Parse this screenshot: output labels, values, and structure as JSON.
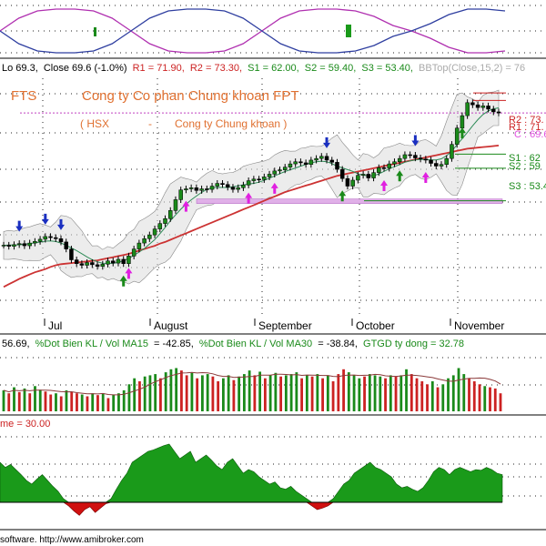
{
  "top_bar": {
    "low": "Lo 69.3,",
    "close": "Close 69.6 (-1.0%)",
    "r1": "R1 = 71.90,",
    "r2": "R2 = 73.30,",
    "s1": "S1 = 62.00,",
    "s2": "S2 = 59.40,",
    "s3": "S3 = 53.40,",
    "bbtop": "BBTop(Close,15,2) = 76"
  },
  "header": {
    "ticker": "FTS",
    "company": "Cong ty Co phan Chung khoan FPT",
    "exchange": "( HSX",
    "dash": "-",
    "sector": "Cong ty Chung khoan )"
  },
  "level_labels": {
    "r2": "R2 : 73.",
    "r1": "R1 : 71.",
    "close": "C : 69.6",
    "s1": "S1 : 62",
    "s2": "S2 : 59",
    "s3": "S3 : 53.4"
  },
  "volume_header": {
    "a": "56.69,",
    "b": "%Dot Bien KL / Vol MA15",
    "c": "= -42.85,",
    "d": "%Dot Bien KL / Vol MA30",
    "e": "= -38.84,",
    "f": "GTGD ty dong = 32.78"
  },
  "osc_header": "me = 30.00",
  "footer": "software.  http://www.amibroker.com",
  "colors": {
    "up": "#1a8a1a",
    "down": "#cc2222",
    "ma_long": "#cc3333",
    "ma_short": "#2e8b57",
    "band_fill": "#dcdcdc",
    "cyclic_a": "#b030b0",
    "cyclic_b": "#2f3fa0",
    "osc_pos": "#1a9a1a",
    "osc_neg": "#d01010",
    "support_zone": "#e0b0e8"
  },
  "chart_data": [
    {
      "type": "line",
      "title": "",
      "description_none": "",
      "ylim": [
        -1,
        1
      ],
      "series": [
        {
          "values": [
            0.0,
            0.35,
            0.55,
            0.6,
            0.6,
            0.55,
            0.35,
            0.0,
            -0.35,
            -0.55,
            -0.6,
            -0.6,
            -0.55,
            -0.35,
            0.0,
            0.35,
            0.55,
            0.6,
            0.6,
            0.55,
            0.4,
            0.15,
            0.0,
            -0.2,
            -0.45,
            -0.6,
            -0.6,
            -0.55
          ]
        },
        {
          "values": [
            0.0,
            -0.35,
            -0.55,
            -0.6,
            -0.6,
            -0.55,
            -0.35,
            0.0,
            0.35,
            0.55,
            0.6,
            0.6,
            0.55,
            0.35,
            0.0,
            -0.35,
            -0.55,
            -0.6,
            -0.6,
            -0.55,
            -0.4,
            -0.15,
            0.0,
            0.2,
            0.45,
            0.6,
            0.6,
            0.55
          ]
        }
      ]
    },
    {
      "type": "line",
      "x_labels": [
        "Jul",
        "August",
        "September",
        "October",
        "November"
      ],
      "ylim": [
        30,
        76
      ],
      "closes": [
        45.2,
        45.0,
        45.3,
        45.5,
        45.1,
        45.6,
        45.9,
        46.3,
        46.8,
        46.6,
        46.4,
        45.8,
        44.5,
        42.5,
        41.8,
        41.5,
        42.0,
        41.6,
        41.3,
        41.7,
        42.3,
        41.9,
        42.6,
        41.8,
        43.2,
        44.5,
        45.6,
        46.4,
        47.1,
        48.2,
        49.2,
        50.1,
        51.6,
        53.6,
        55.4,
        55.6,
        55.8,
        55.3,
        55.6,
        55.5,
        56.1,
        56.6,
        56.4,
        55.9,
        55.5,
        55.8,
        56.3,
        57.1,
        57.4,
        57.3,
        57.8,
        58.3,
        58.9,
        59.1,
        59.6,
        60.2,
        60.6,
        60.4,
        60.1,
        60.9,
        61.2,
        61.6,
        60.9,
        60.5,
        59.2,
        57.5,
        56.1,
        57.2,
        58.1,
        58.3,
        57.6,
        58.6,
        59.5,
        59.4,
        60.2,
        60.6,
        61.2,
        61.9,
        61.8,
        61.3,
        61.1,
        60.9,
        60.3,
        59.8,
        60.1,
        61.2,
        63.8,
        66.8,
        69.1,
        71.5,
        71.1,
        70.6,
        70.9,
        70.3,
        69.8,
        69.6
      ],
      "ma_long": [
        37.5,
        38.0,
        38.5,
        39.0,
        39.4,
        39.8,
        40.2,
        40.5,
        40.8,
        41.2,
        41.5,
        41.7,
        41.8,
        41.9,
        42.0,
        42.1,
        42.2,
        42.3,
        42.4,
        42.6,
        42.8,
        43.0,
        43.2,
        43.4,
        43.6,
        43.9,
        44.2,
        44.5,
        44.8,
        45.1,
        45.5,
        45.8,
        46.2,
        46.6,
        47.0,
        47.4,
        47.8,
        48.2,
        48.6,
        49.0,
        49.4,
        49.8,
        50.2,
        50.6,
        51.0,
        51.4,
        51.8,
        52.2,
        52.6,
        53.0,
        53.4,
        53.8,
        54.2,
        54.6,
        55.0,
        55.3,
        55.6,
        55.9,
        56.2,
        56.5,
        56.8,
        57.1,
        57.4,
        57.7,
        58.0,
        58.2,
        58.4,
        58.6,
        58.8,
        59.0,
        59.2,
        59.4,
        59.6,
        59.8,
        60.0,
        60.2,
        60.4,
        60.6,
        60.8,
        61.0,
        61.2,
        61.4,
        61.6,
        61.8,
        62.0,
        62.2,
        62.4,
        62.6,
        62.8,
        63.0,
        63.1,
        63.2,
        63.3,
        63.4,
        63.5,
        63.6
      ],
      "annotations": {
        "R1": 71.9,
        "R2": 73.3,
        "S1": 62.0,
        "S2": 59.4,
        "S3": 53.4,
        "Close": 69.6
      },
      "buy_arrows_green": [
        23,
        65,
        76,
        88
      ],
      "buy_arrows_magenta": [
        24,
        35,
        47,
        52,
        73,
        81
      ],
      "sell_arrows": [
        3,
        8,
        11,
        62,
        79
      ]
    },
    {
      "type": "bar",
      "ylim": [
        0,
        1
      ],
      "values": [
        0.35,
        0.3,
        0.4,
        0.32,
        0.38,
        0.3,
        0.42,
        0.36,
        0.33,
        0.28,
        0.3,
        0.25,
        0.35,
        0.32,
        0.3,
        0.28,
        0.25,
        0.3,
        0.27,
        0.3,
        0.22,
        0.28,
        0.3,
        0.35,
        0.45,
        0.55,
        0.5,
        0.58,
        0.6,
        0.62,
        0.55,
        0.65,
        0.7,
        0.72,
        0.68,
        0.6,
        0.65,
        0.55,
        0.6,
        0.62,
        0.58,
        0.5,
        0.55,
        0.6,
        0.52,
        0.58,
        0.62,
        0.68,
        0.6,
        0.66,
        0.55,
        0.6,
        0.64,
        0.58,
        0.6,
        0.62,
        0.65,
        0.55,
        0.6,
        0.58,
        0.62,
        0.55,
        0.6,
        0.5,
        0.62,
        0.7,
        0.65,
        0.6,
        0.55,
        0.58,
        0.62,
        0.6,
        0.58,
        0.55,
        0.6,
        0.58,
        0.6,
        0.7,
        0.62,
        0.55,
        0.5,
        0.45,
        0.5,
        0.4,
        0.45,
        0.55,
        0.6,
        0.72,
        0.62,
        0.55,
        0.5,
        0.45,
        0.42,
        0.4,
        0.38,
        0.3
      ],
      "colors_up": [
        1,
        0,
        1,
        0,
        1,
        0,
        1,
        1,
        0,
        0,
        1,
        0,
        1,
        0,
        0,
        1,
        0,
        1,
        0,
        1,
        0,
        1,
        1,
        1,
        1,
        1,
        0,
        1,
        1,
        1,
        0,
        1,
        1,
        1,
        0,
        0,
        1,
        0,
        1,
        1,
        0,
        0,
        1,
        1,
        0,
        1,
        1,
        1,
        0,
        1,
        0,
        1,
        1,
        0,
        1,
        1,
        1,
        0,
        1,
        0,
        1,
        0,
        1,
        0,
        0,
        0,
        1,
        1,
        1,
        0,
        1,
        1,
        1,
        0,
        1,
        0,
        1,
        1,
        0,
        0,
        0,
        0,
        1,
        0,
        1,
        1,
        1,
        1,
        1,
        0,
        0,
        0,
        1,
        0,
        0,
        0
      ]
    },
    {
      "type": "area",
      "ylim": [
        -30,
        100
      ],
      "values": [
        55,
        48,
        52,
        45,
        38,
        30,
        25,
        32,
        38,
        30,
        22,
        15,
        5,
        -5,
        -12,
        -18,
        -10,
        -6,
        -14,
        -8,
        -2,
        5,
        18,
        30,
        40,
        55,
        60,
        65,
        70,
        72,
        75,
        78,
        80,
        70,
        60,
        65,
        70,
        55,
        60,
        65,
        58,
        50,
        45,
        55,
        60,
        50,
        40,
        45,
        42,
        35,
        30,
        25,
        28,
        20,
        18,
        22,
        15,
        10,
        5,
        -5,
        -10,
        -8,
        -5,
        5,
        15,
        25,
        30,
        40,
        45,
        50,
        55,
        48,
        45,
        40,
        35,
        25,
        20,
        22,
        18,
        15,
        20,
        30,
        42,
        48,
        45,
        38,
        45,
        48,
        45,
        42,
        45,
        44,
        48,
        45,
        40,
        38
      ]
    }
  ]
}
